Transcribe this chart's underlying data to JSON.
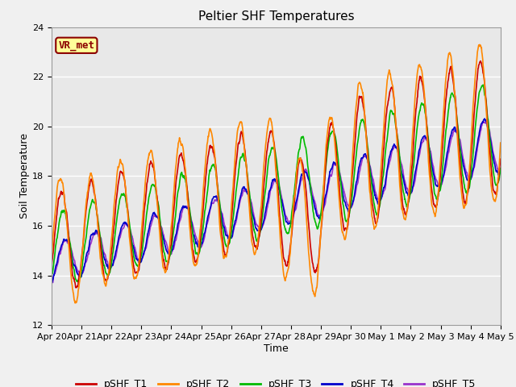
{
  "title": "Peltier SHF Temperatures",
  "xlabel": "Time",
  "ylabel": "Soil Temperature",
  "ylim": [
    12,
    24
  ],
  "y_ticks": [
    12,
    14,
    16,
    18,
    20,
    22,
    24
  ],
  "x_tick_labels": [
    "Apr 20",
    "Apr 21",
    "Apr 22",
    "Apr 23",
    "Apr 24",
    "Apr 25",
    "Apr 26",
    "Apr 27",
    "Apr 28",
    "Apr 29",
    "Apr 30",
    "May 1",
    "May 2",
    "May 3",
    "May 4",
    "May 5"
  ],
  "series_labels": [
    "pSHF_T1",
    "pSHF_T2",
    "pSHF_T3",
    "pSHF_T4",
    "pSHF_T5"
  ],
  "series_colors": [
    "#cc0000",
    "#ff8800",
    "#00bb00",
    "#0000cc",
    "#9933cc"
  ],
  "vr_met_label": "VR_met",
  "vr_met_bg": "#ffff99",
  "vr_met_border": "#8b0000",
  "fig_bg": "#f0f0f0",
  "plot_bg": "#e8e8e8",
  "title_fontsize": 11,
  "axis_label_fontsize": 9,
  "tick_fontsize": 8,
  "legend_fontsize": 9,
  "line_width": 1.2
}
